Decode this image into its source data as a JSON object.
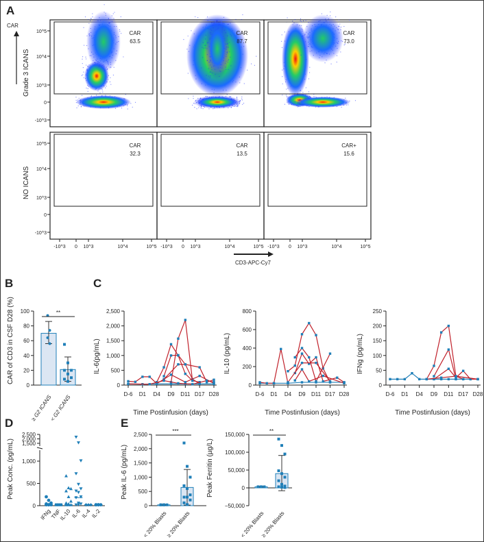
{
  "panels": {
    "A": "A",
    "B": "B",
    "C": "C",
    "D": "D",
    "E": "E"
  },
  "flow": {
    "y_axis_label": "CAR",
    "x_axis_label": "CD3-APC-Cy7",
    "row_labels": [
      "Grade 3 ICANS",
      "NO ICANS"
    ],
    "y_ticks": [
      "10^5",
      "10^4",
      "10^3",
      "0",
      "-10^3"
    ],
    "x_ticks": [
      "-10^3",
      "0",
      "10^3",
      "10^4",
      "10^5"
    ],
    "gates": [
      [
        {
          "name": "CAR",
          "value": "63.5"
        },
        {
          "name": "CAR",
          "value": "87.7"
        },
        {
          "name": "CAR",
          "value": "73.0"
        }
      ],
      [
        {
          "name": "CAR",
          "value": "32.3"
        },
        {
          "name": "CAR",
          "value": "13.5"
        },
        {
          "name": "CAR+",
          "value": "15.6"
        }
      ]
    ],
    "colors": {
      "low": "#1a1aff",
      "mid": "#22cc66",
      "high": "#ffee00",
      "peak": "#ee1111"
    }
  },
  "chart_data": [
    {
      "id": "B",
      "type": "bar",
      "ylabel": "CAR of CD3 in CSF D28 (%)",
      "ylim": [
        0,
        100
      ],
      "yticks": [
        0,
        20,
        40,
        60,
        80,
        100
      ],
      "categories": [
        "≥ G2 ICANS",
        "< G2 ICANS"
      ],
      "means": [
        70,
        21
      ],
      "err_low": [
        56,
        5
      ],
      "err_high": [
        86,
        38
      ],
      "points": [
        [
          94,
          74,
          64,
          56
        ],
        [
          55,
          30,
          20,
          20,
          15,
          10,
          8,
          5
        ]
      ],
      "significance": "**",
      "color": "#1f7fb8",
      "fill": "#dbe6f3"
    },
    {
      "id": "C1",
      "type": "line",
      "ylabel": "IL-6(pg/mL)",
      "xlabel": "Time Postinfusion (days)",
      "ylim": [
        0,
        2500
      ],
      "yticks": [
        0,
        500,
        1000,
        1500,
        2000,
        2500
      ],
      "ytick_labels": [
        "0",
        "500",
        "1,000",
        "1,500",
        "2,000",
        "2,500"
      ],
      "xticks": [
        "D-6",
        "D1",
        "D4",
        "D9",
        "D11",
        "D17",
        "D28"
      ],
      "red_series": [
        [
          [
            0,
            130
          ],
          [
            1,
            110
          ],
          [
            2,
            280
          ],
          [
            3,
            280
          ],
          [
            4,
            50
          ]
        ],
        [
          [
            4,
            100
          ],
          [
            5,
            600
          ],
          [
            6,
            1380
          ],
          [
            7,
            1000
          ],
          [
            8,
            380
          ],
          [
            9,
            150
          ]
        ],
        [
          [
            5,
            300
          ],
          [
            6,
            1000
          ],
          [
            7,
            1010
          ],
          [
            8,
            700
          ],
          [
            9,
            200
          ],
          [
            10,
            50
          ]
        ],
        [
          [
            6,
            100
          ],
          [
            7,
            1570
          ],
          [
            8,
            2200
          ],
          [
            9,
            150
          ],
          [
            10,
            100
          ]
        ],
        [
          [
            5,
            200
          ],
          [
            7,
            700
          ],
          [
            8,
            700
          ],
          [
            10,
            600
          ],
          [
            11,
            100
          ],
          [
            12,
            180
          ]
        ],
        [
          [
            4,
            50
          ],
          [
            6,
            350
          ],
          [
            8,
            100
          ],
          [
            10,
            310
          ],
          [
            12,
            60
          ]
        ],
        [
          [
            0,
            40
          ],
          [
            3,
            30
          ],
          [
            5,
            150
          ],
          [
            7,
            60
          ],
          [
            9,
            30
          ],
          [
            11,
            150
          ],
          [
            12,
            100
          ]
        ]
      ],
      "blue_series": [
        [
          [
            0,
            40
          ],
          [
            2,
            30
          ],
          [
            4,
            40
          ],
          [
            6,
            40
          ],
          [
            8,
            40
          ],
          [
            10,
            40
          ],
          [
            12,
            40
          ]
        ]
      ]
    },
    {
      "id": "C2",
      "type": "line",
      "ylabel": "IL-10 (pg/mL)",
      "xlabel": "Time Postinfusion (days)",
      "ylim": [
        0,
        800
      ],
      "yticks": [
        0,
        200,
        400,
        600,
        800
      ],
      "ytick_labels": [
        "0",
        "200",
        "400",
        "600",
        "800"
      ],
      "xticks": [
        "D-6",
        "D1",
        "D4",
        "D9",
        "D11",
        "D17",
        "D28"
      ],
      "red_series": [
        [
          [
            0,
            30
          ],
          [
            1,
            20
          ],
          [
            2,
            20
          ],
          [
            3,
            390
          ],
          [
            4,
            20
          ]
        ],
        [
          [
            4,
            150
          ],
          [
            5,
            210
          ],
          [
            6,
            550
          ],
          [
            7,
            670
          ],
          [
            8,
            540
          ],
          [
            9,
            180
          ],
          [
            10,
            30
          ]
        ],
        [
          [
            5,
            300
          ],
          [
            6,
            400
          ],
          [
            7,
            300
          ],
          [
            8,
            40
          ],
          [
            10,
            340
          ]
        ],
        [
          [
            5,
            130
          ],
          [
            6,
            340
          ],
          [
            7,
            230
          ],
          [
            8,
            300
          ],
          [
            9,
            40
          ],
          [
            11,
            80
          ],
          [
            12,
            30
          ]
        ],
        [
          [
            4,
            30
          ],
          [
            6,
            240
          ],
          [
            8,
            240
          ],
          [
            10,
            40
          ]
        ],
        [
          [
            5,
            50
          ],
          [
            6,
            170
          ],
          [
            7,
            40
          ],
          [
            9,
            100
          ],
          [
            12,
            20
          ]
        ]
      ],
      "blue_series": [
        [
          [
            0,
            20
          ],
          [
            2,
            20
          ],
          [
            4,
            20
          ],
          [
            6,
            30
          ],
          [
            8,
            30
          ],
          [
            10,
            30
          ],
          [
            12,
            30
          ]
        ]
      ]
    },
    {
      "id": "C3",
      "type": "line",
      "ylabel": "IFNg (pg/mL)",
      "xlabel": "Time Postinfusion (days)",
      "ylim": [
        0,
        250
      ],
      "yticks": [
        0,
        50,
        100,
        150,
        200,
        250
      ],
      "ytick_labels": [
        "0",
        "50",
        "100",
        "150",
        "200",
        "250"
      ],
      "xticks": [
        "D-6",
        "D1",
        "D4",
        "D9",
        "D11",
        "D17",
        "D28"
      ],
      "red_series": [
        [
          [
            5,
            20
          ],
          [
            6,
            65
          ],
          [
            7,
            178
          ],
          [
            8,
            200
          ],
          [
            9,
            30
          ],
          [
            10,
            20
          ]
        ],
        [
          [
            6,
            30
          ],
          [
            8,
            120
          ],
          [
            9,
            20
          ]
        ],
        [
          [
            6,
            20
          ],
          [
            8,
            55
          ],
          [
            9,
            25
          ],
          [
            10,
            48
          ],
          [
            11,
            20
          ],
          [
            12,
            20
          ]
        ],
        [
          [
            5,
            20
          ],
          [
            7,
            25
          ],
          [
            9,
            30
          ],
          [
            12,
            20
          ]
        ]
      ],
      "blue_series": [
        [
          [
            0,
            20
          ],
          [
            1,
            20
          ],
          [
            2,
            20
          ],
          [
            3,
            40
          ],
          [
            4,
            20
          ],
          [
            5,
            20
          ],
          [
            6,
            20
          ],
          [
            7,
            20
          ],
          [
            8,
            20
          ],
          [
            9,
            20
          ],
          [
            10,
            20
          ],
          [
            11,
            20
          ],
          [
            12,
            20
          ]
        ]
      ]
    },
    {
      "id": "D",
      "type": "scatter",
      "ylabel": "Peak Conc. (pg/mL)",
      "yticks_lower": [
        "0",
        "500",
        "1,000"
      ],
      "yticks_upper": [
        "1,500",
        "2,000",
        "2,500"
      ],
      "categories": [
        "IFNg",
        "TNF",
        "IL-10",
        "IL-6",
        "IL-4",
        "IL-2"
      ],
      "values": [
        [
          200,
          120,
          60,
          40,
          20,
          20,
          20,
          20
        ],
        [
          20,
          20,
          20,
          20,
          20,
          20
        ],
        [
          670,
          400,
          380,
          330,
          200,
          100,
          60,
          40,
          20,
          20,
          20
        ],
        [
          2200,
          1570,
          1010,
          720,
          480,
          380,
          330,
          300,
          200,
          180,
          60,
          40,
          20,
          20
        ],
        [
          20,
          20,
          20,
          20
        ],
        [
          20,
          20,
          20,
          20,
          20
        ]
      ],
      "medians": [
        20,
        20,
        20,
        180,
        20,
        20
      ]
    },
    {
      "id": "E1",
      "type": "bar",
      "ylabel": "Peak IL-6 (pg/mL)",
      "ylim": [
        0,
        2500
      ],
      "yticks": [
        0,
        500,
        1000,
        1500,
        2000,
        2500
      ],
      "ytick_labels": [
        "0",
        "500",
        "1,000",
        "1,500",
        "2,000",
        "2,500"
      ],
      "categories": [
        "< 20% Blasts",
        "≥ 20% Blasts"
      ],
      "means": [
        30,
        640
      ],
      "err_low": [
        20,
        20
      ],
      "err_high": [
        40,
        1270
      ],
      "points": [
        [
          30,
          30,
          30,
          30,
          30
        ],
        [
          2200,
          1380,
          1000,
          700,
          600,
          380,
          300,
          300,
          200,
          100,
          40
        ]
      ],
      "significance": "***"
    },
    {
      "id": "E2",
      "type": "bar",
      "ylabel": "Peak Ferritin (µg/L)",
      "ylim": [
        -50000,
        150000
      ],
      "yticks": [
        -50000,
        0,
        50000,
        100000,
        150000
      ],
      "ytick_labels": [
        "−50,000",
        "0",
        "50,000",
        "100,000",
        "150,000"
      ],
      "categories": [
        "< 20% Blasts",
        "≥ 20% Blasts"
      ],
      "means": [
        3000,
        40000
      ],
      "err_low": [
        2000,
        -8000
      ],
      "err_high": [
        4000,
        91000
      ],
      "points": [
        [
          3000,
          3000,
          3000,
          3000,
          3000
        ],
        [
          137000,
          119000,
          95000,
          48000,
          40000,
          30000,
          20000,
          10000,
          5000,
          3000,
          2000,
          1000
        ]
      ],
      "significance": "**"
    }
  ]
}
